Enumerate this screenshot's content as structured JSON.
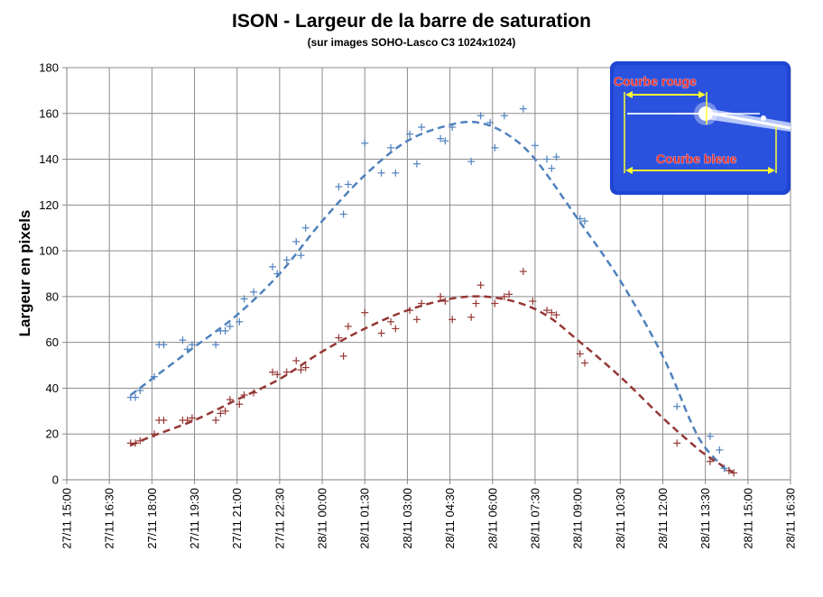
{
  "chart_data": {
    "type": "scatter",
    "title": "ISON - Largeur de la barre de saturation",
    "subtitle": "(sur images SOHO-Lasco C3 1024x1024)",
    "ylabel": "Largeur en pixels",
    "xlabel": "",
    "ylim": [
      0,
      180
    ],
    "y_ticks": [
      0,
      20,
      40,
      60,
      80,
      100,
      120,
      140,
      160,
      180
    ],
    "x_ticks": [
      "27/11 15:00",
      "27/11 16:30",
      "27/11 18:00",
      "27/11 19:30",
      "27/11 21:00",
      "27/11 22:30",
      "28/11 00:00",
      "28/11 01:30",
      "28/11 03:00",
      "28/11 04:30",
      "28/11 06:00",
      "28/11 07:30",
      "28/11 09:00",
      "28/11 10:30",
      "28/11 12:00",
      "28/11 13:30",
      "28/11 15:00",
      "28/11 16:30"
    ],
    "grid": true,
    "series": [
      {
        "color": "#4f81bd",
        "marker": "+",
        "points": [
          [
            "27/11 17:15",
            36
          ],
          [
            "27/11 17:25",
            36
          ],
          [
            "27/11 17:35",
            39
          ],
          [
            "27/11 18:05",
            45
          ],
          [
            "27/11 18:15",
            59
          ],
          [
            "27/11 18:25",
            59
          ],
          [
            "27/11 19:05",
            61
          ],
          [
            "27/11 19:15",
            57
          ],
          [
            "27/11 19:25",
            59
          ],
          [
            "27/11 20:15",
            59
          ],
          [
            "27/11 20:25",
            65
          ],
          [
            "27/11 20:35",
            65
          ],
          [
            "27/11 20:45",
            67
          ],
          [
            "27/11 21:05",
            69
          ],
          [
            "27/11 21:15",
            79
          ],
          [
            "27/11 21:35",
            82
          ],
          [
            "27/11 22:15",
            93
          ],
          [
            "27/11 22:25",
            90
          ],
          [
            "27/11 22:45",
            96
          ],
          [
            "27/11 23:05",
            104
          ],
          [
            "27/11 23:15",
            98
          ],
          [
            "27/11 23:25",
            110
          ],
          [
            "28/11 00:35",
            128
          ],
          [
            "28/11 00:45",
            116
          ],
          [
            "28/11 00:55",
            129
          ],
          [
            "28/11 01:30",
            147
          ],
          [
            "28/11 02:05",
            134
          ],
          [
            "28/11 02:25",
            145
          ],
          [
            "28/11 02:35",
            134
          ],
          [
            "28/11 03:05",
            151
          ],
          [
            "28/11 03:20",
            138
          ],
          [
            "28/11 03:30",
            154
          ],
          [
            "28/11 04:10",
            149
          ],
          [
            "28/11 04:20",
            148
          ],
          [
            "28/11 04:35",
            154
          ],
          [
            "28/11 05:15",
            139
          ],
          [
            "28/11 05:35",
            159
          ],
          [
            "28/11 05:55",
            156
          ],
          [
            "28/11 06:05",
            145
          ],
          [
            "28/11 06:25",
            159
          ],
          [
            "28/11 07:05",
            162
          ],
          [
            "28/11 07:30",
            146
          ],
          [
            "28/11 07:55",
            140
          ],
          [
            "28/11 08:05",
            136
          ],
          [
            "28/11 08:15",
            141
          ],
          [
            "28/11 09:05",
            114
          ],
          [
            "28/11 09:15",
            113
          ],
          [
            "28/11 12:30",
            32
          ],
          [
            "28/11 13:40",
            19
          ],
          [
            "28/11 14:00",
            13
          ],
          [
            "28/11 14:10",
            5
          ],
          [
            "28/11 14:20",
            4
          ]
        ]
      },
      {
        "color": "#953735",
        "marker": "+",
        "points": [
          [
            "27/11 17:15",
            16
          ],
          [
            "27/11 17:25",
            16
          ],
          [
            "27/11 17:35",
            17
          ],
          [
            "27/11 18:05",
            20
          ],
          [
            "27/11 18:15",
            26
          ],
          [
            "27/11 18:25",
            26
          ],
          [
            "27/11 19:05",
            26
          ],
          [
            "27/11 19:15",
            26
          ],
          [
            "27/11 19:25",
            27
          ],
          [
            "27/11 20:15",
            26
          ],
          [
            "27/11 20:25",
            29
          ],
          [
            "27/11 20:35",
            30
          ],
          [
            "27/11 20:45",
            35
          ],
          [
            "27/11 21:05",
            33
          ],
          [
            "27/11 21:15",
            37
          ],
          [
            "27/11 21:35",
            38
          ],
          [
            "27/11 22:15",
            47
          ],
          [
            "27/11 22:25",
            46
          ],
          [
            "27/11 22:45",
            47
          ],
          [
            "27/11 23:05",
            52
          ],
          [
            "27/11 23:15",
            48
          ],
          [
            "27/11 23:25",
            49
          ],
          [
            "28/11 00:35",
            62
          ],
          [
            "28/11 00:45",
            54
          ],
          [
            "28/11 00:55",
            67
          ],
          [
            "28/11 01:30",
            73
          ],
          [
            "28/11 02:05",
            64
          ],
          [
            "28/11 02:25",
            69
          ],
          [
            "28/11 02:35",
            66
          ],
          [
            "28/11 03:05",
            74
          ],
          [
            "28/11 03:20",
            70
          ],
          [
            "28/11 03:30",
            77
          ],
          [
            "28/11 04:10",
            80
          ],
          [
            "28/11 04:20",
            78
          ],
          [
            "28/11 04:35",
            70
          ],
          [
            "28/11 05:15",
            71
          ],
          [
            "28/11 05:25",
            77
          ],
          [
            "28/11 05:35",
            85
          ],
          [
            "28/11 06:05",
            77
          ],
          [
            "28/11 06:25",
            80
          ],
          [
            "28/11 06:35",
            81
          ],
          [
            "28/11 07:05",
            91
          ],
          [
            "28/11 07:25",
            78
          ],
          [
            "28/11 07:55",
            74
          ],
          [
            "28/11 08:05",
            73
          ],
          [
            "28/11 08:15",
            72
          ],
          [
            "28/11 09:05",
            55
          ],
          [
            "28/11 09:15",
            51
          ],
          [
            "28/11 12:30",
            16
          ],
          [
            "28/11 13:40",
            8
          ],
          [
            "28/11 14:20",
            4
          ],
          [
            "28/11 14:30",
            3
          ]
        ]
      }
    ],
    "trend_lines": [
      {
        "color": "#4f81bd",
        "style": "dashed",
        "points": [
          [
            "27/11 17:15",
            37
          ],
          [
            "27/11 18:00",
            44
          ],
          [
            "27/11 19:30",
            58
          ],
          [
            "27/11 21:00",
            72
          ],
          [
            "27/11 22:30",
            90
          ],
          [
            "28/11 00:00",
            113
          ],
          [
            "28/11 01:30",
            133
          ],
          [
            "28/11 03:00",
            148
          ],
          [
            "28/11 04:30",
            155
          ],
          [
            "28/11 05:30",
            156
          ],
          [
            "28/11 06:30",
            151
          ],
          [
            "28/11 07:30",
            140
          ],
          [
            "28/11 09:00",
            114
          ],
          [
            "28/11 10:30",
            87
          ],
          [
            "28/11 12:00",
            54
          ],
          [
            "28/11 13:00",
            25
          ],
          [
            "28/11 13:30",
            14
          ],
          [
            "28/11 14:15",
            4
          ]
        ]
      },
      {
        "color": "#953735",
        "style": "dashed",
        "points": [
          [
            "27/11 17:15",
            15
          ],
          [
            "27/11 18:00",
            19
          ],
          [
            "27/11 19:30",
            26
          ],
          [
            "27/11 21:00",
            35
          ],
          [
            "27/11 22:30",
            44
          ],
          [
            "28/11 00:00",
            56
          ],
          [
            "28/11 01:30",
            66
          ],
          [
            "28/11 03:00",
            74
          ],
          [
            "28/11 04:30",
            79
          ],
          [
            "28/11 05:45",
            80
          ],
          [
            "28/11 07:00",
            77
          ],
          [
            "28/11 08:00",
            71
          ],
          [
            "28/11 09:00",
            61
          ],
          [
            "28/11 10:30",
            45
          ],
          [
            "28/11 12:00",
            27
          ],
          [
            "28/11 13:00",
            16
          ],
          [
            "28/11 13:30",
            11
          ],
          [
            "28/11 14:30",
            3
          ]
        ]
      }
    ],
    "inset": {
      "labels": [
        "Courbe rouge",
        "Courbe bleue"
      ],
      "label_colors": [
        "#e32b2b",
        "#e32b2b"
      ],
      "arrow_color": "#ffff33",
      "background_color": "#1a3fd1"
    }
  }
}
